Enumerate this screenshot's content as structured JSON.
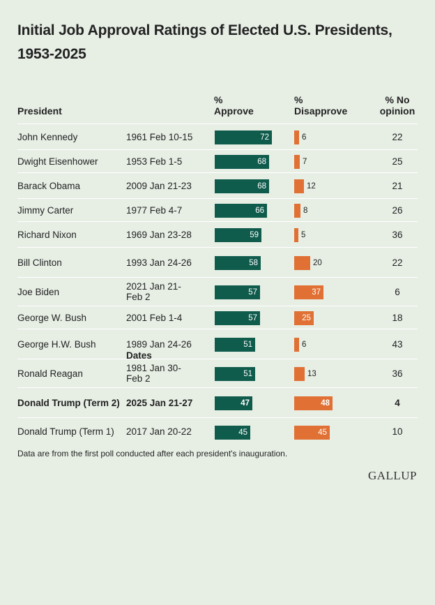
{
  "title": "Initial Job Approval Ratings of Elected U.S. Presidents, 1953-2025",
  "headers": {
    "president": "President",
    "dates": "Dates",
    "approve_1": "%",
    "approve_2": "Approve",
    "disapprove_1": "%",
    "disapprove_2": "Disapprove",
    "noop_1": "% No",
    "noop_2": "opinion"
  },
  "footnote": "Data are from the first poll conducted after each president's inauguration.",
  "logo": "GALLUP",
  "colors": {
    "approve": "#0f5b4c",
    "disapprove": "#e07033",
    "background": "#e7efe5"
  },
  "chart_data": {
    "type": "table",
    "columns": [
      "President",
      "Dates",
      "% Approve",
      "% Disapprove",
      "% No opinion"
    ],
    "rows": [
      {
        "president": "John Kennedy",
        "dates": "1961 Feb 10-15",
        "approve": 72,
        "disapprove": 6,
        "no_opinion": 22,
        "highlight": false
      },
      {
        "president": "Dwight Eisenhower",
        "dates": "1953 Feb 1-5",
        "approve": 68,
        "disapprove": 7,
        "no_opinion": 25,
        "highlight": false
      },
      {
        "president": "Barack Obama",
        "dates": "2009 Jan 21-23",
        "approve": 68,
        "disapprove": 12,
        "no_opinion": 21,
        "highlight": false
      },
      {
        "president": "Jimmy Carter",
        "dates": "1977 Feb 4-7",
        "approve": 66,
        "disapprove": 8,
        "no_opinion": 26,
        "highlight": false
      },
      {
        "president": "Richard Nixon",
        "dates": "1969 Jan 23-28",
        "approve": 59,
        "disapprove": 5,
        "no_opinion": 36,
        "highlight": false
      },
      {
        "president": "Bill Clinton",
        "dates": "1993 Jan 24-26",
        "approve": 58,
        "disapprove": 20,
        "no_opinion": 22,
        "highlight": false
      },
      {
        "president": "Joe Biden",
        "dates": "2021 Jan 21-Feb 2",
        "approve": 57,
        "disapprove": 37,
        "no_opinion": 6,
        "highlight": false
      },
      {
        "president": "George W. Bush",
        "dates": "2001 Feb 1-4",
        "approve": 57,
        "disapprove": 25,
        "no_opinion": 18,
        "highlight": false
      },
      {
        "president": "George H.W. Bush",
        "dates": "1989 Jan 24-26",
        "approve": 51,
        "disapprove": 6,
        "no_opinion": 43,
        "highlight": false
      },
      {
        "president": "Ronald Reagan",
        "dates": "1981 Jan 30-Feb 2",
        "approve": 51,
        "disapprove": 13,
        "no_opinion": 36,
        "highlight": false
      },
      {
        "president": "Donald Trump (Term 2)",
        "dates": "2025 Jan 21-27",
        "approve": 47,
        "disapprove": 48,
        "no_opinion": 4,
        "highlight": true
      },
      {
        "president": "Donald Trump (Term 1)",
        "dates": "2017 Jan 20-22",
        "approve": 45,
        "disapprove": 45,
        "no_opinion": 10,
        "highlight": false
      }
    ]
  }
}
